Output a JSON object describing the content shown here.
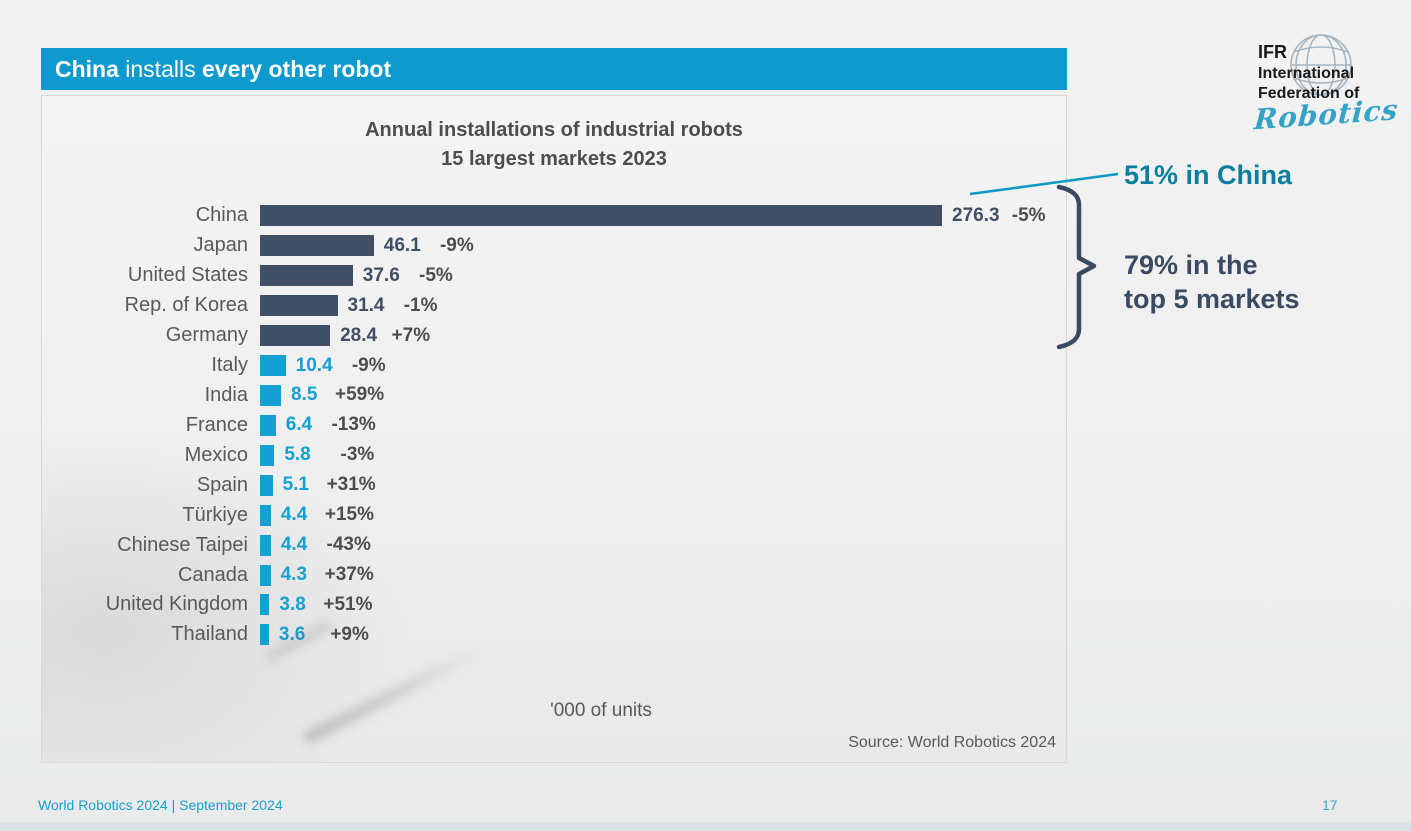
{
  "slide_header": {
    "segment_bold_1": "China",
    "segment_regular": " installs ",
    "segment_bold_2": "every other robot"
  },
  "logo": {
    "line_1": "IFR",
    "line_2": "International",
    "line_3": "Federation of",
    "script": "Robotics"
  },
  "chart_data": {
    "type": "bar",
    "orientation": "horizontal",
    "title": "Annual installations of industrial robots",
    "subtitle": "15 largest markets 2023",
    "xlabel": "'000 of units",
    "source": "Source: World Robotics 2024",
    "value_axis_range": [
      0,
      280
    ],
    "highlight_top_n": 5,
    "categories": [
      "China",
      "Japan",
      "United States",
      "Rep. of Korea",
      "Germany",
      "Italy",
      "India",
      "France",
      "Mexico",
      "Spain",
      "Türkiye",
      "Chinese Taipei",
      "Canada",
      "United Kingdom",
      "Thailand"
    ],
    "values": [
      276.3,
      46.1,
      37.6,
      31.4,
      28.4,
      10.4,
      8.5,
      6.4,
      5.8,
      5.1,
      4.4,
      4.4,
      4.3,
      3.8,
      3.6
    ],
    "change_labels": [
      "-5%",
      "-9%",
      "-5%",
      "-1%",
      "+7%",
      "-9%",
      "+59%",
      "-13%",
      "-3%",
      "+31%",
      "+15%",
      "-43%",
      "+37%",
      "+51%",
      "+9%"
    ],
    "bar_color_top5": "#404f66",
    "bar_color_rest": "#14a0d2",
    "value_color_top5": "#404f66",
    "value_color_rest": "#14a0d2",
    "change_color": "#4d4d4d"
  },
  "annotations": {
    "china_share_label": "51% in China",
    "top5_share_line1": "79% in the",
    "top5_share_line2": "top 5 markets"
  },
  "footer": {
    "left_text": "World Robotics 2024  | September 2024",
    "page_number": "17"
  },
  "colors": {
    "header_bar": "#0e9ace",
    "accent_cyan": "#14a0d2",
    "teal_annotation": "#0c7f9e",
    "navy": "#3a4a63",
    "label_gray": "#595959"
  }
}
